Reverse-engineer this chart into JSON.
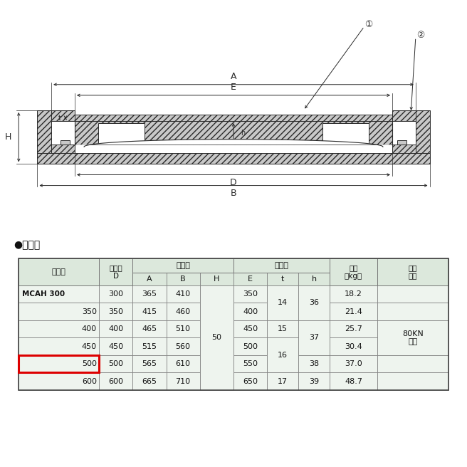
{
  "bg_color": "#ffffff",
  "lc": "#2a2a2a",
  "hatch_fc": "#c8c8c8",
  "table": {
    "header_bg": "#dce8dc",
    "row_bg": "#eef4ee",
    "highlight_color": "#dd0000",
    "highlight_row": 4,
    "rows": [
      {
        "label": "MCAH 300",
        "bold": true,
        "D": "300",
        "A": "365",
        "B": "410",
        "E": "350",
        "kg": "18.2"
      },
      {
        "label": "350",
        "bold": false,
        "D": "350",
        "A": "415",
        "B": "460",
        "E": "400",
        "kg": "21.4"
      },
      {
        "label": "400",
        "bold": false,
        "D": "400",
        "A": "465",
        "B": "510",
        "E": "450",
        "kg": "25.7"
      },
      {
        "label": "450",
        "bold": false,
        "D": "450",
        "A": "515",
        "B": "560",
        "E": "500",
        "kg": "30.4"
      },
      {
        "label": "500",
        "bold": false,
        "D": "500",
        "A": "565",
        "B": "610",
        "E": "550",
        "kg": "37.0"
      },
      {
        "label": "600",
        "bold": false,
        "D": "600",
        "A": "665",
        "B": "710",
        "E": "650",
        "kg": "48.7"
      }
    ],
    "H_all": "50",
    "t_vals": [
      [
        "14",
        "0",
        "1"
      ],
      [
        "15",
        "2",
        "2"
      ],
      [
        "16",
        "3",
        "4"
      ],
      [
        "17",
        "5",
        "5"
      ]
    ],
    "h_vals": [
      [
        "36",
        "0",
        "1"
      ],
      [
        "37",
        "2",
        "3"
      ],
      [
        "38",
        "4",
        "4"
      ],
      [
        "39",
        "5",
        "5"
      ]
    ],
    "extra_val": "80KN",
    "extra_val2": "以上",
    "extra_rows": [
      2,
      3
    ]
  },
  "diagram": {
    "A_label": "A",
    "E_label": "E",
    "D_label": "D",
    "B_label": "B",
    "H_label": "H",
    "h_label": "h",
    "t_label": "t",
    "c1": "①",
    "c2": "②"
  }
}
